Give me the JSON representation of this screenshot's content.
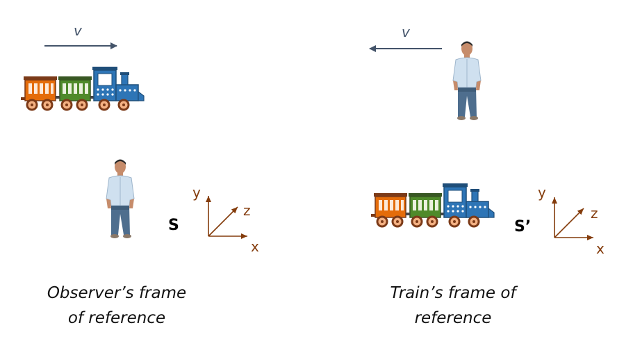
{
  "left_panel": {
    "velocity_label": "v",
    "frame_symbol": "S",
    "caption_line1": "Observer’s frame",
    "caption_line2": "of reference"
  },
  "right_panel": {
    "velocity_label": "v",
    "frame_symbol": "S’",
    "caption_line1": "Train’s frame of",
    "caption_line2": "reference"
  },
  "axes": {
    "x": "x",
    "y": "y",
    "z": "z"
  },
  "colors": {
    "arrow": "#44546a",
    "axes": "#843c0c",
    "car_orange": "#e46c0a",
    "car_green": "#4f8a2a",
    "engine_blue": "#2e75b6"
  }
}
